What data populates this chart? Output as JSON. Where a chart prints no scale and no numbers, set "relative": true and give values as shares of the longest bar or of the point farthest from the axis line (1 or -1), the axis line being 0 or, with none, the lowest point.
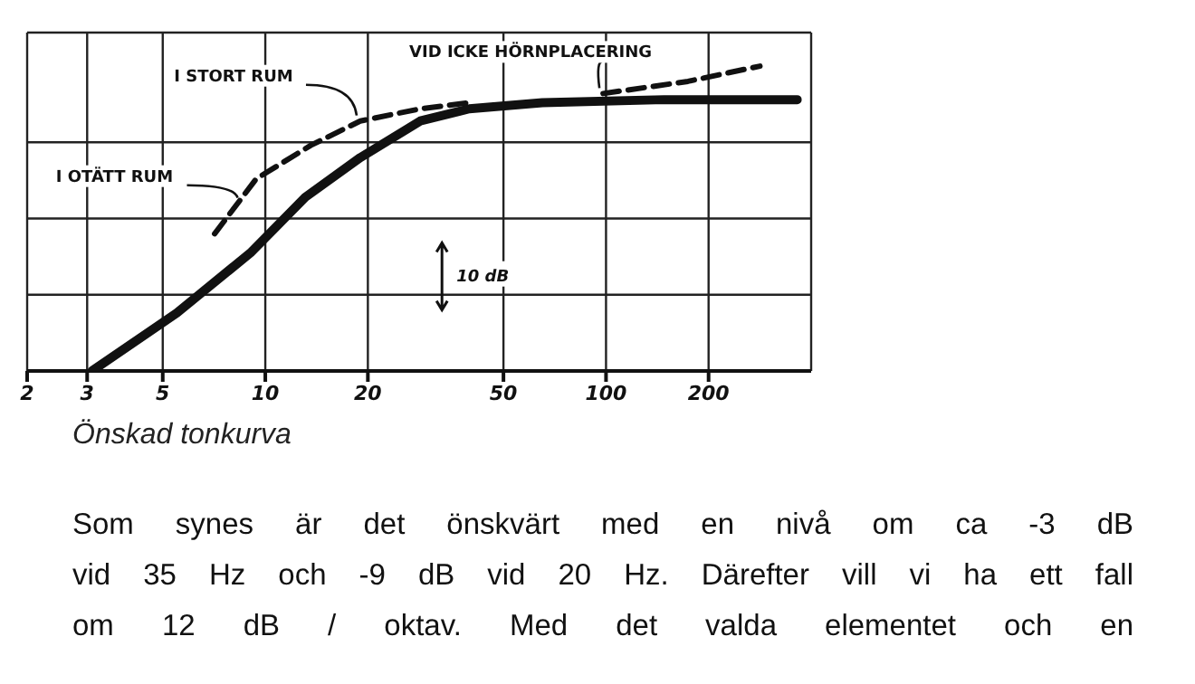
{
  "chart_data": {
    "type": "line",
    "relative": true,
    "log": "x",
    "xlim": [
      2,
      400
    ],
    "xticks": [
      2,
      3,
      5,
      10,
      20,
      50,
      100,
      200
    ],
    "grid": true,
    "marker": "none",
    "series": [
      {
        "color": "#111111",
        "line_style": "solid",
        "x": [
          3.1,
          5.5,
          9.1,
          13.1,
          19,
          28.5,
          39.7,
          65,
          148,
          364
        ],
        "values": [
          0,
          0.19,
          0.39,
          0.57,
          0.7,
          0.82,
          0.86,
          0.88,
          0.89,
          0.89
        ]
      },
      {
        "color": "#111111",
        "line_style": "dashed",
        "x": [
          7.1,
          9.4,
          13.6,
          19,
          28.5,
          39.7
        ],
        "values": [
          0.45,
          0.63,
          0.74,
          0.82,
          0.86,
          0.88
        ]
      },
      {
        "color": "#111111",
        "line_style": "dashed",
        "x": [
          98,
          174,
          283
        ],
        "values": [
          0.91,
          0.95,
          1.0
        ]
      }
    ],
    "annotations": [
      {
        "text": "I STORT RUM",
        "x": 19,
        "y": 0.82
      },
      {
        "text": "I OTÄTT RUM",
        "x": 8.5,
        "y": 0.55
      },
      {
        "text": "VID ICKE HÖRNPLACERING",
        "x": 98,
        "y": 0.91
      },
      "10 dB",
      "Önskad tonkurva",
      "Som synes är det önskvärt med en nivå om ca -3 dB",
      "vid 35 Hz och -9 dB vid 20 Hz. Därefter vill vi ha ett fall",
      "om 12 dB / oktav. Med det valda elementet och en"
    ]
  }
}
